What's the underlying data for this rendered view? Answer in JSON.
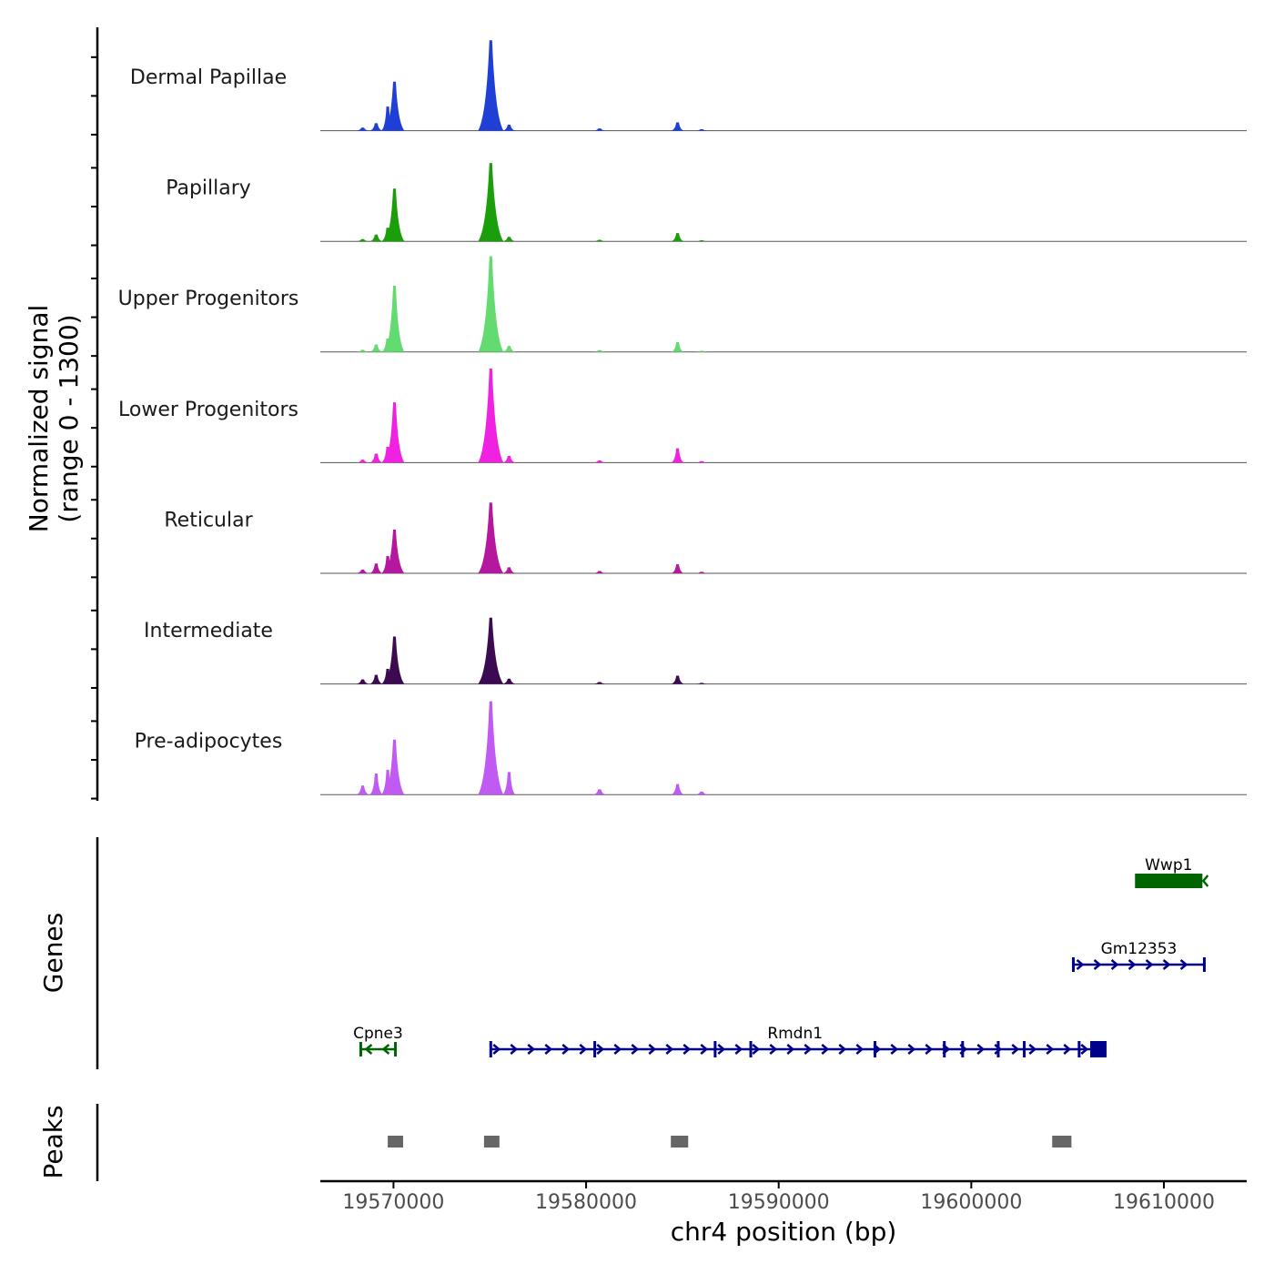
{
  "figure": {
    "y_title_line1": "Normalized signal",
    "y_title_line2": "(range 0 - 1300)",
    "genes_title": "Genes",
    "peaks_title": "Peaks",
    "x_title": "chr4 position (bp)"
  },
  "chart_data": {
    "type": "area",
    "chromosome": "chr4",
    "xlim": [
      19566200,
      19614300
    ],
    "ylim": [
      0,
      1300
    ],
    "x_ticks": [
      19570000,
      19580000,
      19590000,
      19600000,
      19610000
    ],
    "x_tick_labels": [
      "19570000",
      "19580000",
      "19590000",
      "19600000",
      "19610000"
    ],
    "coverage_peaks_x": [
      19568400,
      19569100,
      19569700,
      19570050,
      19575050,
      19576000,
      19580700,
      19584750,
      19586000
    ],
    "tracks": [
      {
        "name": "Dermal Papillae",
        "color": "#1f3fd6",
        "heights": [
          40,
          100,
          320,
          650,
          1200,
          80,
          30,
          110,
          20
        ]
      },
      {
        "name": "Papillary",
        "color": "#1a9e0a",
        "heights": [
          30,
          90,
          180,
          700,
          1040,
          60,
          20,
          110,
          15
        ]
      },
      {
        "name": "Upper Progenitors",
        "color": "#63db71",
        "heights": [
          30,
          100,
          180,
          880,
          1270,
          80,
          25,
          130,
          15
        ]
      },
      {
        "name": "Lower Progenitors",
        "color": "#f021e0",
        "heights": [
          40,
          120,
          210,
          800,
          1250,
          90,
          30,
          190,
          20
        ]
      },
      {
        "name": "Reticular",
        "color": "#b5179e",
        "heights": [
          50,
          130,
          230,
          580,
          940,
          80,
          30,
          120,
          20
        ]
      },
      {
        "name": "Intermediate",
        "color": "#3b0a50",
        "heights": [
          60,
          120,
          200,
          630,
          880,
          70,
          25,
          110,
          15
        ]
      },
      {
        "name": "Pre-adipocytes",
        "color": "#c05af2",
        "heights": [
          120,
          280,
          330,
          730,
          1240,
          300,
          70,
          140,
          40
        ]
      }
    ],
    "genes": [
      {
        "name": "Wwp1",
        "strand": "-",
        "start": 19608500,
        "end": 19612000,
        "row": 0,
        "color": "#006400",
        "thick": true
      },
      {
        "name": "Gm12353",
        "strand": "+",
        "start": 19605300,
        "end": 19612100,
        "row": 1,
        "color": "#00008b",
        "thick": false
      },
      {
        "name": "Cpne3",
        "strand": "-",
        "start": 19568300,
        "end": 19570100,
        "row": 2,
        "color": "#006400",
        "thick": false
      },
      {
        "name": "Rmdn1",
        "strand": "+",
        "start": 19575000,
        "end": 19606700,
        "row": 2,
        "color": "#00008b",
        "thick": false,
        "exons": [
          19575050,
          19580450,
          19586700,
          19588550,
          19595000,
          19598600,
          19599550,
          19601400,
          19602750,
          19605600,
          19606600
        ]
      }
    ],
    "peaks": [
      {
        "start": 19569700,
        "end": 19570500
      },
      {
        "start": 19574700,
        "end": 19575500
      },
      {
        "start": 19584400,
        "end": 19585300
      },
      {
        "start": 19604200,
        "end": 19605200
      }
    ]
  }
}
